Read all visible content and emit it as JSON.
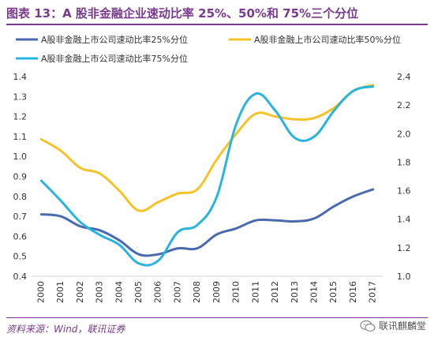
{
  "header": {
    "title": "图表 13：A 股非金融企业速动比率 25%、50%和 75%三个分位"
  },
  "footer": {
    "source": "资料来源：Wind，联讯证券",
    "watermark": "联讯麒麟堂"
  },
  "icons": {
    "watermark_icon": "wechat-icon"
  },
  "colors": {
    "title": "#7a3a8f",
    "p25": "#4a6ab0",
    "p50": "#f5c227",
    "p75": "#28b4e0"
  },
  "chart_data": {
    "type": "line",
    "categories": [
      "2000",
      "2001",
      "2002",
      "2003",
      "2004",
      "2005",
      "2006",
      "2007",
      "2008",
      "2009",
      "2010",
      "2011",
      "2012",
      "2013",
      "2014",
      "2015",
      "2016",
      "2017"
    ],
    "left_axis": {
      "ylim": [
        0.4,
        1.4
      ],
      "ticks": [
        "0.4",
        "0.5",
        "0.6",
        "0.7",
        "0.8",
        "0.9",
        "1.0",
        "1.1",
        "1.2",
        "1.3",
        "1.4"
      ]
    },
    "right_axis": {
      "ylim": [
        1.0,
        2.4
      ],
      "ticks": [
        "1.0",
        "1.2",
        "1.4",
        "1.6",
        "1.8",
        "2.0",
        "2.2",
        "2.4"
      ]
    },
    "legend_position": "top-left",
    "grid": false,
    "series": [
      {
        "name": "A股非金融上市公司速动比率25%分位",
        "axis": "left",
        "color": "#4a6ab0",
        "values": [
          0.71,
          0.7,
          0.65,
          0.63,
          0.58,
          0.51,
          0.51,
          0.54,
          0.54,
          0.61,
          0.64,
          0.68,
          0.68,
          0.675,
          0.69,
          0.75,
          0.8,
          0.835
        ]
      },
      {
        "name": "A股非金融上市公司速动比率50%分位",
        "axis": "right",
        "color": "#f5c227",
        "values": [
          1.96,
          1.88,
          1.76,
          1.72,
          1.6,
          1.46,
          1.52,
          1.58,
          1.61,
          1.82,
          2.0,
          2.14,
          2.12,
          2.1,
          2.11,
          2.18,
          2.3,
          2.34
        ]
      },
      {
        "name": "A股非金融上市公司速动比率75%分位",
        "axis": "right",
        "color": "#28b4e0",
        "values": [
          1.67,
          1.53,
          1.38,
          1.29,
          1.22,
          1.09,
          1.11,
          1.31,
          1.36,
          1.56,
          2.07,
          2.28,
          2.16,
          1.97,
          1.98,
          2.16,
          2.3,
          2.33
        ]
      }
    ]
  }
}
